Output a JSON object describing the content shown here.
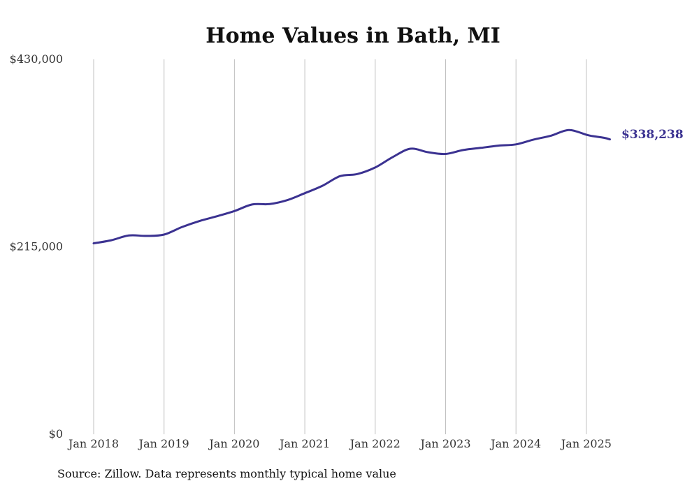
{
  "chart_data": {
    "type": "line",
    "title": "Home Values in Bath, MI",
    "xlabel": "",
    "ylabel": "",
    "ylim": [
      0,
      430000
    ],
    "y_ticks": [
      {
        "value": 0,
        "label": "$0"
      },
      {
        "value": 215000,
        "label": "$215,000"
      },
      {
        "value": 430000,
        "label": "$430,000"
      }
    ],
    "x_ticks": [
      {
        "value": "2018-01",
        "label": "Jan 2018"
      },
      {
        "value": "2019-01",
        "label": "Jan 2019"
      },
      {
        "value": "2020-01",
        "label": "Jan 2020"
      },
      {
        "value": "2021-01",
        "label": "Jan 2021"
      },
      {
        "value": "2022-01",
        "label": "Jan 2022"
      },
      {
        "value": "2023-01",
        "label": "Jan 2023"
      },
      {
        "value": "2024-01",
        "label": "Jan 2024"
      },
      {
        "value": "2025-01",
        "label": "Jan 2025"
      }
    ],
    "grid": "vertical",
    "line_color": "#3b3291",
    "series": [
      {
        "points": [
          {
            "x": "2018-01",
            "y": 219000
          },
          {
            "x": "2018-04",
            "y": 222500
          },
          {
            "x": "2018-07",
            "y": 228000
          },
          {
            "x": "2018-10",
            "y": 227500
          },
          {
            "x": "2019-01",
            "y": 229000
          },
          {
            "x": "2019-04",
            "y": 237500
          },
          {
            "x": "2019-07",
            "y": 244500
          },
          {
            "x": "2019-10",
            "y": 250000
          },
          {
            "x": "2020-01",
            "y": 256000
          },
          {
            "x": "2020-04",
            "y": 263500
          },
          {
            "x": "2020-07",
            "y": 264000
          },
          {
            "x": "2020-10",
            "y": 268500
          },
          {
            "x": "2021-01",
            "y": 276500
          },
          {
            "x": "2021-04",
            "y": 285000
          },
          {
            "x": "2021-07",
            "y": 296000
          },
          {
            "x": "2021-10",
            "y": 298500
          },
          {
            "x": "2022-01",
            "y": 306000
          },
          {
            "x": "2022-04",
            "y": 318000
          },
          {
            "x": "2022-07",
            "y": 327500
          },
          {
            "x": "2022-10",
            "y": 323500
          },
          {
            "x": "2023-01",
            "y": 321500
          },
          {
            "x": "2023-04",
            "y": 326000
          },
          {
            "x": "2023-07",
            "y": 328500
          },
          {
            "x": "2023-10",
            "y": 331000
          },
          {
            "x": "2024-01",
            "y": 332500
          },
          {
            "x": "2024-04",
            "y": 338000
          },
          {
            "x": "2024-07",
            "y": 342500
          },
          {
            "x": "2024-10",
            "y": 349000
          },
          {
            "x": "2025-01",
            "y": 343500
          },
          {
            "x": "2025-02",
            "y": 342000
          },
          {
            "x": "2025-04",
            "y": 340000
          },
          {
            "x": "2025-05",
            "y": 338238
          }
        ]
      }
    ],
    "end_label": "$338,238"
  },
  "footer": {
    "source": "Source: Zillow. Data represents monthly typical home value"
  }
}
